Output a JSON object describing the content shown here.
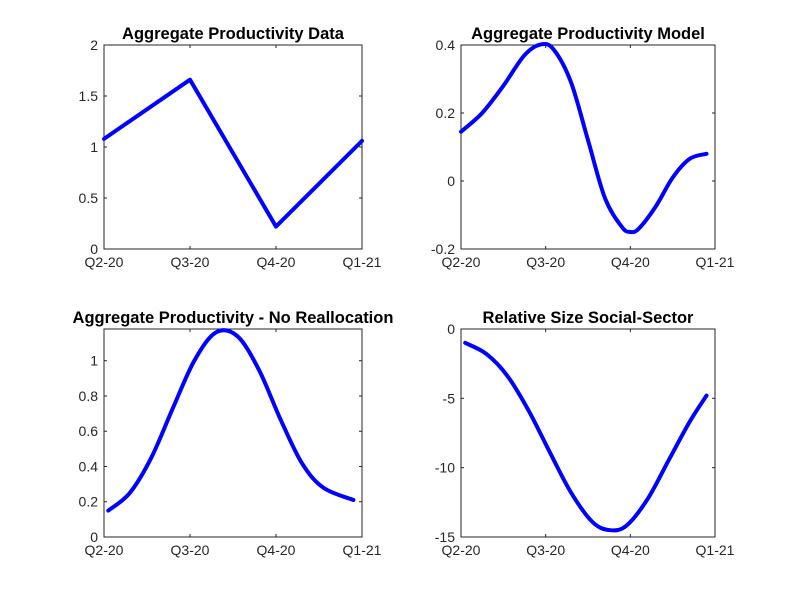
{
  "chart_data": [
    {
      "type": "line",
      "title": "Aggregate Productivity Data",
      "xticks": [
        "Q2-20",
        "Q3-20",
        "Q4-20",
        "Q1-21"
      ],
      "xlim": [
        0,
        3
      ],
      "ylim": [
        0,
        2
      ],
      "yticks": [
        "0",
        "0.5",
        "1",
        "1.5",
        "2"
      ],
      "ytick_values": [
        0,
        0.5,
        1,
        1.5,
        2
      ],
      "color": "#0000ff",
      "series": [
        {
          "x": [
            0,
            1,
            2,
            3
          ],
          "y": [
            1.08,
            1.66,
            0.22,
            1.06
          ]
        }
      ]
    },
    {
      "type": "line",
      "title": "Aggregate Productivity Model",
      "xticks": [
        "Q2-20",
        "Q3-20",
        "Q4-20",
        "Q1-21"
      ],
      "xlim": [
        0,
        3
      ],
      "ylim": [
        -0.2,
        0.4
      ],
      "yticks": [
        "-0.2",
        "0",
        "0.2",
        "0.4"
      ],
      "ytick_values": [
        -0.2,
        0,
        0.2,
        0.4
      ],
      "color": "#0000ff",
      "series": [
        {
          "x": [
            0,
            0.25,
            0.5,
            0.75,
            0.95,
            1.1,
            1.3,
            1.5,
            1.7,
            1.9,
            2.0,
            2.1,
            2.3,
            2.5,
            2.7,
            2.9
          ],
          "y": [
            0.145,
            0.2,
            0.28,
            0.37,
            0.402,
            0.385,
            0.29,
            0.12,
            -0.05,
            -0.135,
            -0.15,
            -0.14,
            -0.075,
            0.01,
            0.065,
            0.08
          ]
        }
      ]
    },
    {
      "type": "line",
      "title": "Aggregate Productivity - No Reallocation",
      "xticks": [
        "Q2-20",
        "Q3-20",
        "Q4-20",
        "Q1-21"
      ],
      "xlim": [
        0,
        3
      ],
      "ylim": [
        0,
        1.18
      ],
      "yticks": [
        "0",
        "0.2",
        "0.4",
        "0.6",
        "0.8",
        "1"
      ],
      "ytick_values": [
        0,
        0.2,
        0.4,
        0.6,
        0.8,
        1
      ],
      "color": "#0000ff",
      "series": [
        {
          "x": [
            0.05,
            0.3,
            0.55,
            0.8,
            1.05,
            1.3,
            1.55,
            1.8,
            2.05,
            2.3,
            2.55,
            2.9
          ],
          "y": [
            0.15,
            0.25,
            0.45,
            0.73,
            1.0,
            1.16,
            1.14,
            0.95,
            0.67,
            0.42,
            0.28,
            0.21
          ]
        }
      ]
    },
    {
      "type": "line",
      "title": "Relative Size Social-Sector",
      "xticks": [
        "Q2-20",
        "Q3-20",
        "Q4-20",
        "Q1-21"
      ],
      "xlim": [
        0,
        3
      ],
      "ylim": [
        -15,
        0
      ],
      "yticks": [
        "-15",
        "-10",
        "-5",
        "0"
      ],
      "ytick_values": [
        -15,
        -10,
        -5,
        0
      ],
      "color": "#0000ff",
      "series": [
        {
          "x": [
            0.05,
            0.3,
            0.55,
            0.8,
            1.05,
            1.3,
            1.55,
            1.75,
            1.95,
            2.2,
            2.45,
            2.7,
            2.9
          ],
          "y": [
            -1.0,
            -1.8,
            -3.4,
            -5.9,
            -8.9,
            -11.8,
            -13.9,
            -14.5,
            -14.2,
            -12.3,
            -9.5,
            -6.7,
            -4.8
          ]
        }
      ]
    }
  ]
}
